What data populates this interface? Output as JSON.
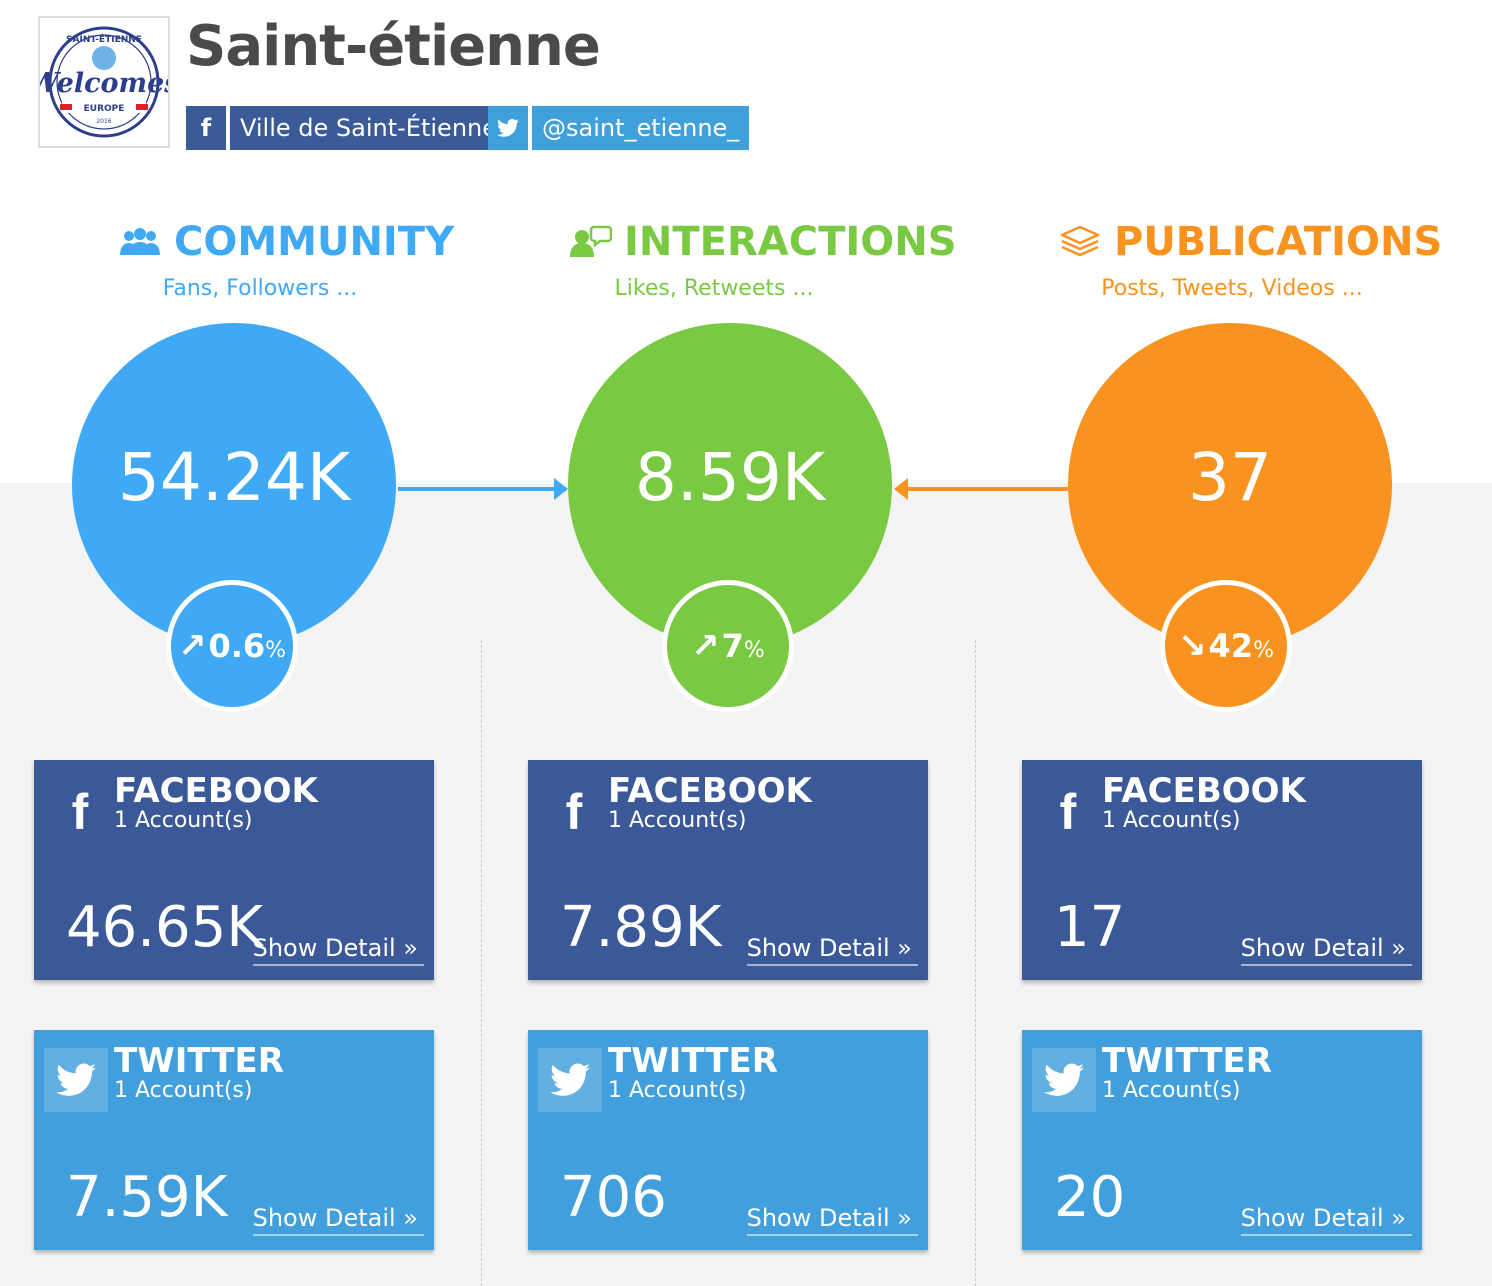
{
  "header": {
    "title": "Saint-étienne",
    "logo_text": [
      "SAINT-ÉTIENNE",
      "Welcomes",
      "EUROPE",
      "2016"
    ],
    "facebook_label": "Ville de Saint-Étienne",
    "twitter_label": "@saint_etienne_"
  },
  "colors": {
    "community": "#3fa9f5",
    "interactions": "#7ac943",
    "publications": "#f7931e",
    "facebook": "#3b5998",
    "twitter": "#409fdc"
  },
  "sections": [
    {
      "id": "community",
      "title": "COMMUNITY",
      "subtitle": "Fans, Followers ...",
      "icon": "users-icon",
      "total": "54.24K",
      "trend": {
        "direction": "up",
        "arrow": "↗",
        "value": "0.6",
        "unit": "%"
      },
      "cards": [
        {
          "network": "FACEBOOK",
          "accounts": "1 Account(s)",
          "value": "46.65K",
          "link": "Show Detail »"
        },
        {
          "network": "TWITTER",
          "accounts": "1 Account(s)",
          "value": "7.59K",
          "link": "Show Detail »"
        }
      ]
    },
    {
      "id": "interactions",
      "title": "INTERACTIONS",
      "subtitle": "Likes, Retweets ...",
      "icon": "chat-user-icon",
      "total": "8.59K",
      "trend": {
        "direction": "up",
        "arrow": "↗",
        "value": "7",
        "unit": "%"
      },
      "cards": [
        {
          "network": "FACEBOOK",
          "accounts": "1 Account(s)",
          "value": "7.89K",
          "link": "Show Detail »"
        },
        {
          "network": "TWITTER",
          "accounts": "1 Account(s)",
          "value": "706",
          "link": "Show Detail »"
        }
      ]
    },
    {
      "id": "publications",
      "title": "PUBLICATIONS",
      "subtitle": "Posts, Tweets, Videos ...",
      "icon": "layers-icon",
      "total": "37",
      "trend": {
        "direction": "down",
        "arrow": "↘",
        "value": "42",
        "unit": "%"
      },
      "cards": [
        {
          "network": "FACEBOOK",
          "accounts": "1 Account(s)",
          "value": "17",
          "link": "Show Detail »"
        },
        {
          "network": "TWITTER",
          "accounts": "1 Account(s)",
          "value": "20",
          "link": "Show Detail »"
        }
      ]
    }
  ]
}
